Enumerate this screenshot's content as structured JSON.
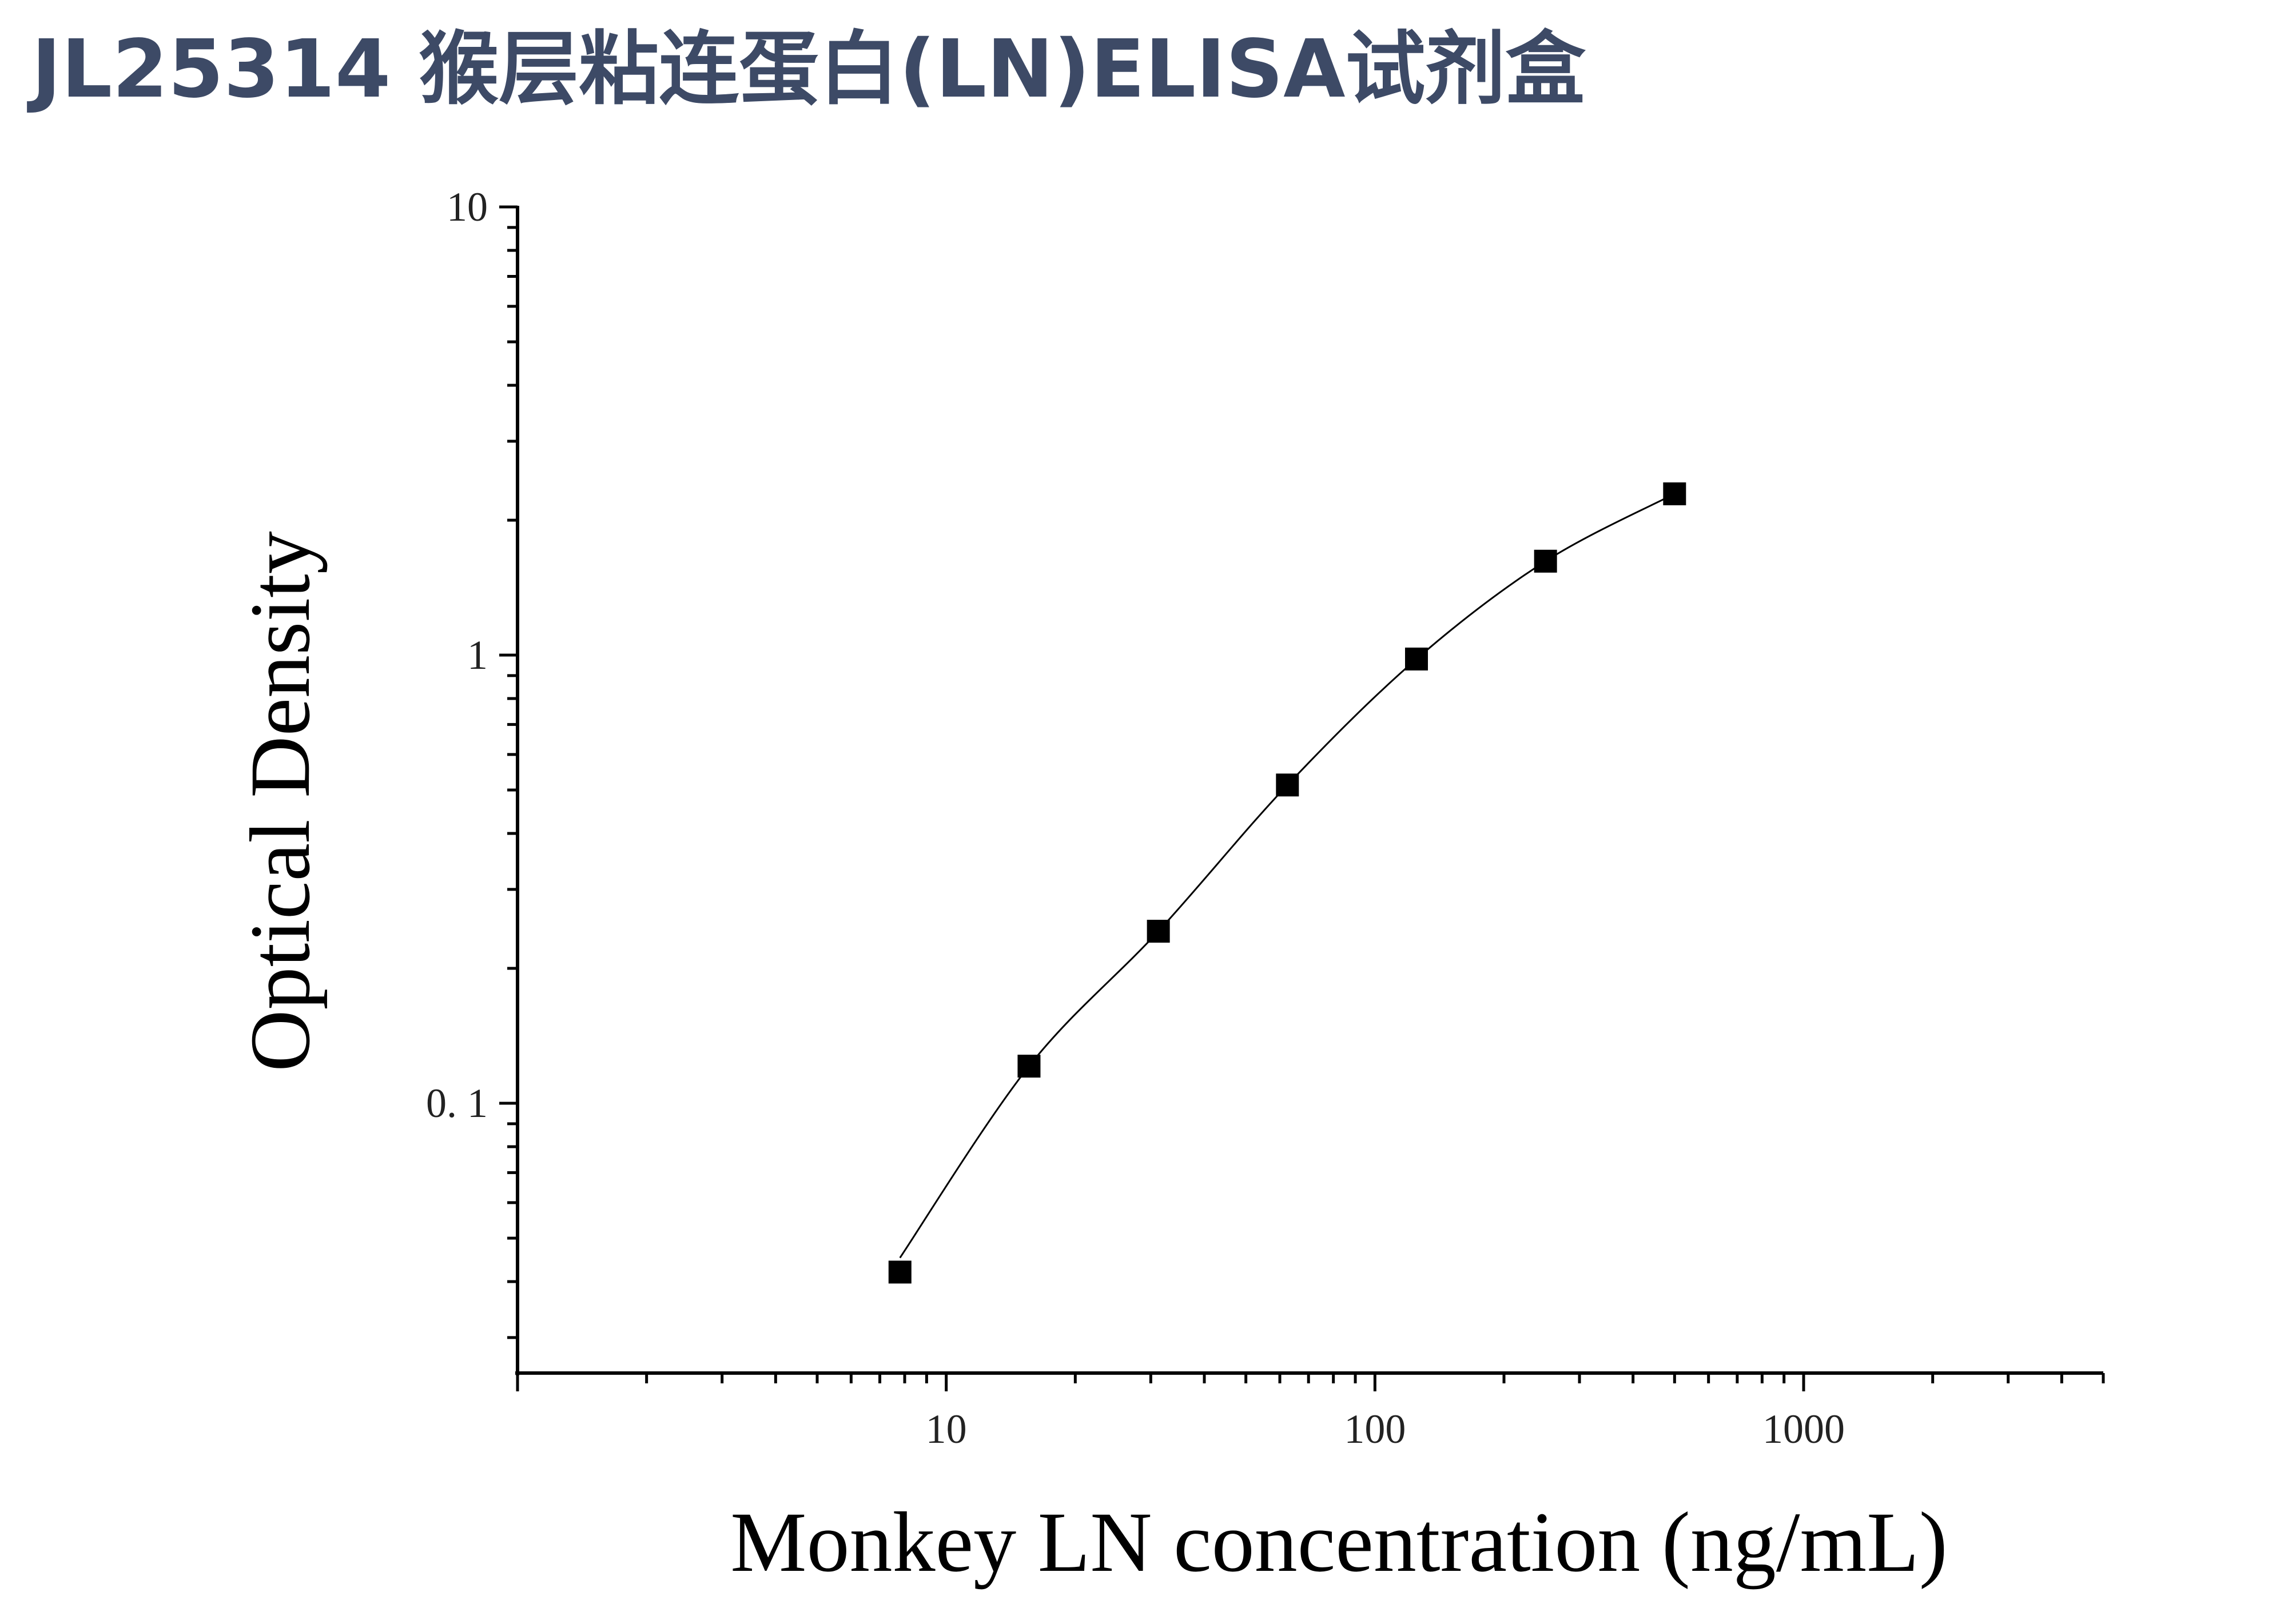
{
  "title": "JL25314 猴层粘连蛋白(LN)ELISA试剂盒",
  "chart_data": {
    "type": "scatter",
    "xlabel": "Monkey LN concentration (ng/mL)",
    "ylabel": "Optical Density",
    "x_scale": "log",
    "y_scale": "log",
    "xlim": [
      1,
      5000
    ],
    "ylim": [
      0.025,
      10
    ],
    "x_ticks": [
      "10",
      "100",
      "1000"
    ],
    "y_ticks": [
      "0. 1",
      "1",
      "10"
    ],
    "grid": false,
    "marker": "square",
    "marker_color": "#000000",
    "fit_line": true,
    "series": [
      {
        "x": [
          7.8,
          15.6,
          31.25,
          62.5,
          125,
          250,
          500
        ],
        "y": [
          0.042,
          0.121,
          0.242,
          0.513,
          0.98,
          1.62,
          2.29
        ]
      }
    ]
  }
}
